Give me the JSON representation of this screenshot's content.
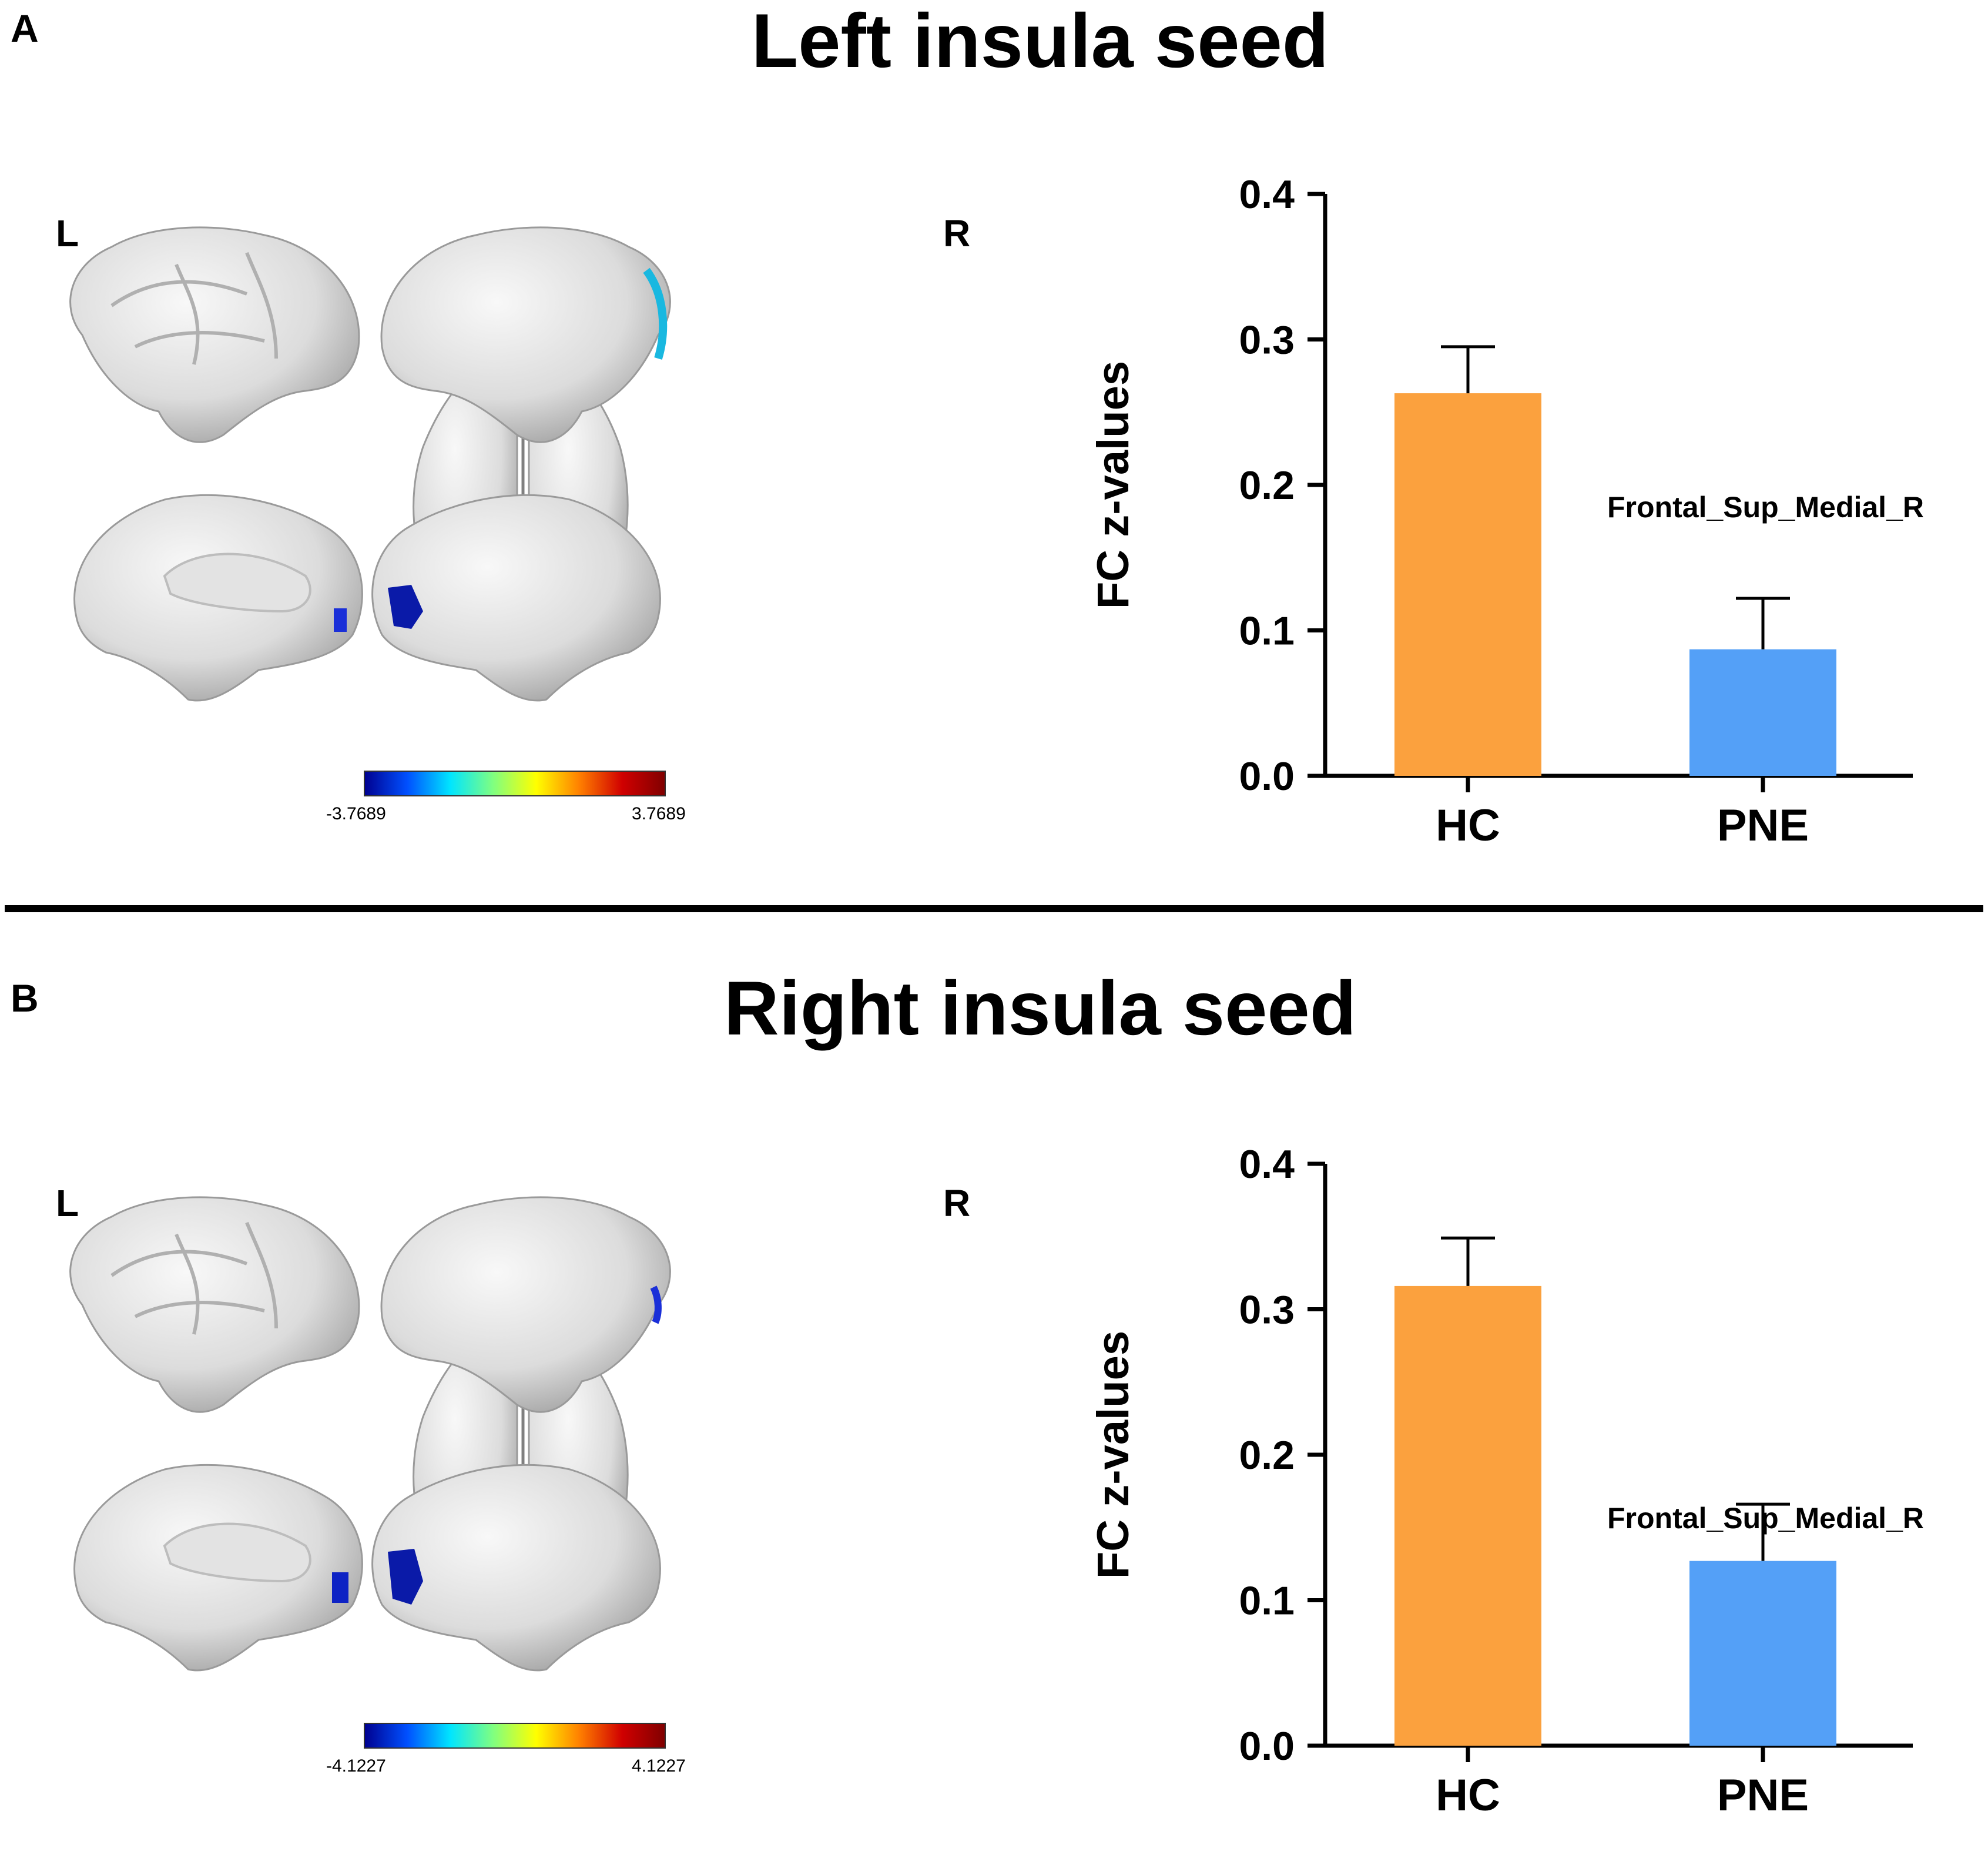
{
  "panels": [
    {
      "letter": "A",
      "title": "Left insula seed",
      "hemisphere_left": "L",
      "hemisphere_right": "R",
      "colorbar": {
        "min_label": "-3.7689",
        "max_label": "3.7689",
        "colors": [
          "#00008f",
          "#0050ff",
          "#00e5ff",
          "#80ff80",
          "#ffff00",
          "#ff8000",
          "#d00000",
          "#800000"
        ]
      },
      "chart_data": {
        "type": "bar",
        "categories": [
          "HC",
          "PNE"
        ],
        "values": [
          0.263,
          0.087
        ],
        "error": [
          0.032,
          0.035
        ],
        "colors": [
          "#FBA13E",
          "#54A0F7"
        ],
        "ylabel": "FC z-values",
        "annotation": "Frontal_Sup_Medial_R",
        "ylim": [
          0,
          0.4
        ],
        "yticks": [
          "0.0",
          "0.1",
          "0.2",
          "0.3",
          "0.4"
        ],
        "grid": false
      }
    },
    {
      "letter": "B",
      "title": "Right insula seed",
      "hemisphere_left": "L",
      "hemisphere_right": "R",
      "colorbar": {
        "min_label": "-4.1227",
        "max_label": "4.1227",
        "colors": [
          "#00008f",
          "#0050ff",
          "#00e5ff",
          "#80ff80",
          "#ffff00",
          "#ff8000",
          "#d00000",
          "#800000"
        ]
      },
      "chart_data": {
        "type": "bar",
        "categories": [
          "HC",
          "PNE"
        ],
        "values": [
          0.316,
          0.127
        ],
        "error": [
          0.033,
          0.039
        ],
        "colors": [
          "#FBA13E",
          "#54A0F7"
        ],
        "ylabel": "FC z-values",
        "annotation": "Frontal_Sup_Medial_R",
        "ylim": [
          0,
          0.4
        ],
        "yticks": [
          "0.0",
          "0.1",
          "0.2",
          "0.3",
          "0.4"
        ],
        "grid": false
      }
    }
  ]
}
